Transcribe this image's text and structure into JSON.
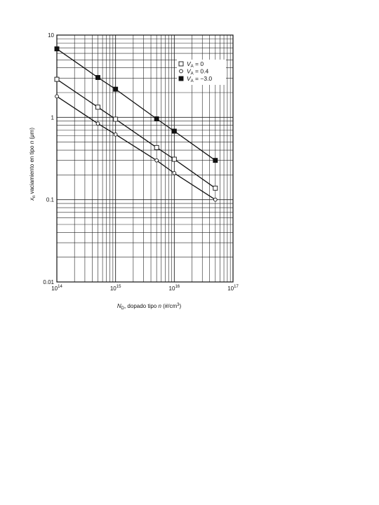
{
  "chart_data": {
    "type": "line",
    "xscale": "log",
    "yscale": "log",
    "xlim": [
      100000000000000.0,
      1e+17
    ],
    "ylim": [
      0.01,
      10
    ],
    "grid": true,
    "x_ticks": [
      {
        "base": "10",
        "exp": "14"
      },
      {
        "base": "10",
        "exp": "15"
      },
      {
        "base": "10",
        "exp": "16"
      },
      {
        "base": "10",
        "exp": "17"
      }
    ],
    "y_ticks": [
      "0.01",
      "0.1",
      "1",
      "10"
    ],
    "y_tick_values": [
      0.01,
      0.1,
      1,
      10
    ],
    "xlabel": {
      "sym": "N",
      "sub": "D",
      "mid": ", dopado tipo ",
      "n": "n",
      "unit": " (#/cm",
      "sup": "3",
      "close": ")"
    },
    "ylabel": {
      "sym": "x",
      "sub": "n",
      "mid": " vaciamiento en tipo ",
      "n": "n",
      "unit": " (μm)"
    },
    "legend_position": "top-right",
    "series": [
      {
        "marker": "open-square",
        "legend": {
          "sym": "V",
          "sub": "A",
          "value": " = 0"
        },
        "x": [
          100000000000000.0,
          500000000000000.0,
          1000000000000000.0,
          5000000000000000.0,
          1e+16,
          5e+16
        ],
        "y": [
          2.9,
          1.33,
          0.95,
          0.43,
          0.31,
          0.138
        ]
      },
      {
        "marker": "open-circle",
        "legend": {
          "sym": "V",
          "sub": "A",
          "value": " = 0.4"
        },
        "x": [
          100000000000000.0,
          500000000000000.0,
          1000000000000000.0,
          5000000000000000.0,
          1e+16,
          5e+16
        ],
        "y": [
          1.8,
          0.84,
          0.62,
          0.3,
          0.21,
          0.1
        ]
      },
      {
        "marker": "filled-square",
        "legend": {
          "sym": "V",
          "sub": "A",
          "value": " = −3.0"
        },
        "x": [
          100000000000000.0,
          500000000000000.0,
          1000000000000000.0,
          5000000000000000.0,
          1e+16,
          5e+16
        ],
        "y": [
          6.8,
          3.05,
          2.2,
          0.96,
          0.68,
          0.3
        ]
      }
    ]
  }
}
